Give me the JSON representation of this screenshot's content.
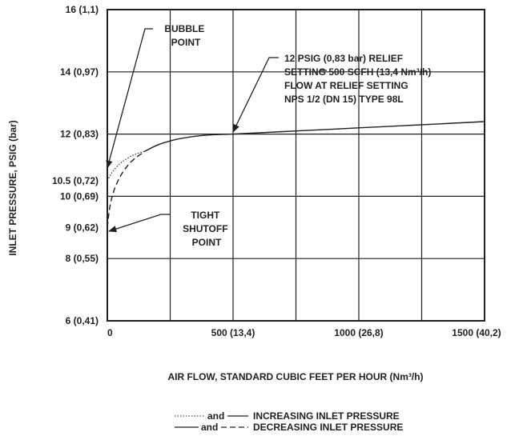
{
  "chart_data": {
    "type": "line",
    "xlabel": "AIR FLOW, STANDARD CUBIC FEET PER HOUR (Nm³/h)",
    "ylabel": "INLET PRESSURE, PSIG (bar)",
    "xlim": [
      0,
      1500
    ],
    "ylim": [
      6,
      16
    ],
    "grid": true,
    "x_ticks": [
      {
        "value": 0,
        "label": "0"
      },
      {
        "value": 500,
        "label": "500 (13,4)"
      },
      {
        "value": 1000,
        "label": "1000 (26,8)"
      },
      {
        "value": 1500,
        "label": "1500 (40,2)"
      }
    ],
    "x_gridlines": [
      250,
      500,
      750,
      1000,
      1250
    ],
    "y_ticks": [
      {
        "value": 16,
        "label": "16 (1,1)"
      },
      {
        "value": 14,
        "label": "14 (0,97)"
      },
      {
        "value": 12,
        "label": "12 (0,83)"
      },
      {
        "value": 10.5,
        "label": "10.5 (0,72)"
      },
      {
        "value": 10,
        "label": "10 (0,69)"
      },
      {
        "value": 9,
        "label": "9 (0,62)"
      },
      {
        "value": 8,
        "label": "8 (0,55)"
      },
      {
        "value": 6,
        "label": "6 (0,41)"
      }
    ],
    "y_gridlines": [
      8,
      10,
      12,
      14
    ],
    "series": [
      {
        "style": "solid",
        "x": [
          150,
          200,
          250,
          300,
          350,
          400,
          450,
          500,
          700,
          900,
          1100,
          1300,
          1500
        ],
        "y": [
          11.45,
          11.65,
          11.78,
          11.87,
          11.93,
          11.97,
          11.99,
          12.0,
          12.08,
          12.16,
          12.24,
          12.32,
          12.4
        ]
      },
      {
        "style": "dotted",
        "x": [
          0,
          20,
          50,
          80,
          110,
          150
        ],
        "y": [
          10.5,
          10.78,
          11.05,
          11.22,
          11.35,
          11.45
        ]
      },
      {
        "style": "dashed",
        "x": [
          0,
          10,
          25,
          50,
          80,
          110,
          150
        ],
        "y": [
          9.0,
          9.65,
          10.15,
          10.62,
          10.98,
          11.22,
          11.45
        ]
      }
    ],
    "annotations": [
      {
        "lines": [
          "BUBBLE",
          "POINT"
        ],
        "x": 0,
        "y": 10.5
      },
      {
        "lines": [
          "12 PSIG (0,83 bar) RELIEF",
          "SETTING 500 SCFH (13,4 Nm³/h)",
          "FLOW AT RELIEF SETTING",
          "NPS 1/2 (DN 15) TYPE 98L"
        ],
        "x": 500,
        "y": 12
      },
      {
        "lines": [
          "TIGHT",
          "SHUTOFF",
          "POINT"
        ],
        "x": 0,
        "y": 9
      }
    ],
    "legend": {
      "position": "bottom",
      "entries": [
        {
          "styles": [
            "dotted",
            "solid"
          ],
          "joiner": "and",
          "label": "INCREASING INLET PRESSURE"
        },
        {
          "styles": [
            "solid",
            "dashed"
          ],
          "joiner": "and",
          "label": "DECREASING INLET PRESSURE"
        }
      ]
    }
  }
}
